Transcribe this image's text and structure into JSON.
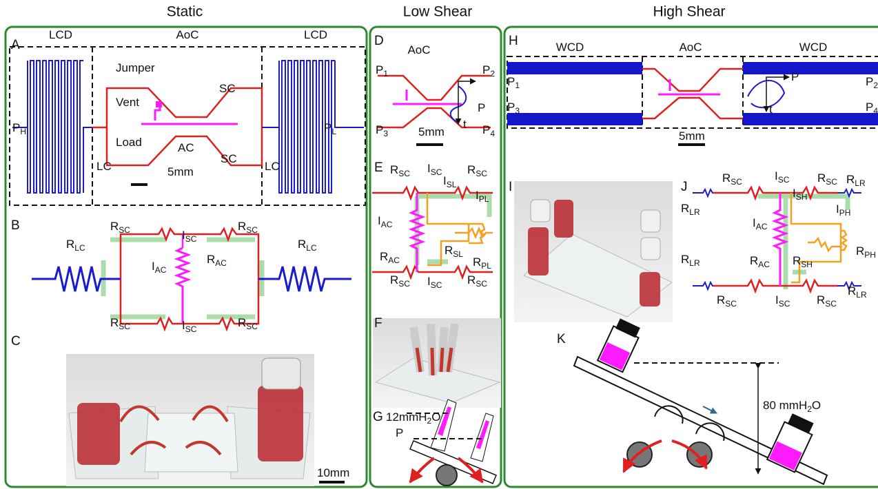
{
  "headers": [
    "Static",
    "Low Shear",
    "High Shear"
  ],
  "panel_letters": [
    "A",
    "B",
    "C",
    "D",
    "E",
    "F",
    "G",
    "H",
    "I",
    "J",
    "K"
  ],
  "panel_a": [
    {
      "t": "LCD"
    },
    {
      "t": "AoC"
    },
    {
      "t": "LCD"
    },
    {
      "t": "Jumper"
    },
    {
      "t": "SC"
    },
    {
      "t": "Vent"
    },
    {
      "t": "Load"
    },
    {
      "t": "AC"
    },
    {
      "t": "SC"
    },
    {
      "t": "LC"
    },
    {
      "t": "LC"
    },
    {
      "t": "P",
      "s": "H"
    },
    {
      "t": "P",
      "s": "L"
    },
    {
      "t": "5mm"
    }
  ],
  "panel_b": [
    {
      "t": "R",
      "s": "SC"
    },
    {
      "t": "R",
      "s": "SC"
    },
    {
      "t": "I",
      "s": "SC",
      "color": "#2a9a2a"
    },
    {
      "t": "R",
      "s": "LC"
    },
    {
      "t": "R",
      "s": "LC"
    },
    {
      "t": "I",
      "s": "AC",
      "color": "#2a9a2a"
    },
    {
      "t": "R",
      "s": "AC"
    },
    {
      "t": "R",
      "s": "SC"
    },
    {
      "t": "I",
      "s": "SC",
      "color": "#2a9a2a"
    },
    {
      "t": "R",
      "s": "SC"
    }
  ],
  "panel_c": [
    {
      "t": "10mm"
    }
  ],
  "panel_d": [
    {
      "t": "AoC"
    },
    {
      "t": "P",
      "s": "1"
    },
    {
      "t": "P",
      "s": "2"
    },
    {
      "t": "P",
      "s": "3"
    },
    {
      "t": "P",
      "s": "4"
    },
    {
      "t": "P"
    },
    {
      "t": "t"
    },
    {
      "t": "5mm"
    }
  ],
  "panel_e": [
    {
      "t": "R",
      "s": "SC"
    },
    {
      "t": "I",
      "s": "SC",
      "color": "#2a9a2a"
    },
    {
      "t": "R",
      "s": "SC"
    },
    {
      "t": "I",
      "s": "SL",
      "color": "#2a9a2a"
    },
    {
      "t": "I",
      "s": "PL",
      "color": "#2a9a2a"
    },
    {
      "t": "I",
      "s": "AC",
      "color": "#2a9a2a"
    },
    {
      "t": "R",
      "s": "SL"
    },
    {
      "t": "R",
      "s": "AC"
    },
    {
      "t": "R",
      "s": "PL"
    },
    {
      "t": "R",
      "s": "SC"
    },
    {
      "t": "I",
      "s": "SC",
      "color": "#2a9a2a"
    },
    {
      "t": "R",
      "s": "SC"
    }
  ],
  "panel_g": [
    {
      "t": "12mmH",
      "s": "2",
      "e": "O"
    },
    {
      "t": "P"
    }
  ],
  "panel_h": [
    {
      "t": "WCD"
    },
    {
      "t": "AoC"
    },
    {
      "t": "WCD"
    },
    {
      "t": "P",
      "s": "1"
    },
    {
      "t": "P",
      "s": "2"
    },
    {
      "t": "P",
      "s": "3"
    },
    {
      "t": "P",
      "s": "4"
    },
    {
      "t": "P"
    },
    {
      "t": "t"
    },
    {
      "t": "5mm"
    }
  ],
  "panel_j": [
    {
      "t": "R",
      "s": "SC"
    },
    {
      "t": "I",
      "s": "SC",
      "color": "#2a9a2a"
    },
    {
      "t": "R",
      "s": "SC"
    },
    {
      "t": "R",
      "s": "LR"
    },
    {
      "t": "R",
      "s": "LR"
    },
    {
      "t": "I",
      "s": "SH",
      "color": "#2a9a2a"
    },
    {
      "t": "I",
      "s": "PH",
      "color": "#2a9a2a"
    },
    {
      "t": "I",
      "s": "AC",
      "color": "#2a9a2a"
    },
    {
      "t": "R",
      "s": "LR"
    },
    {
      "t": "R",
      "s": "AC"
    },
    {
      "t": "R",
      "s": "SH"
    },
    {
      "t": "R",
      "s": "PH"
    },
    {
      "t": "R",
      "s": "SC"
    },
    {
      "t": "I",
      "s": "SC",
      "color": "#2a9a2a"
    },
    {
      "t": "R",
      "s": "SC"
    },
    {
      "t": "R",
      "s": "LR"
    }
  ],
  "panel_k": [
    {
      "t": "80 mmH",
      "s": "2",
      "e": "O"
    }
  ]
}
